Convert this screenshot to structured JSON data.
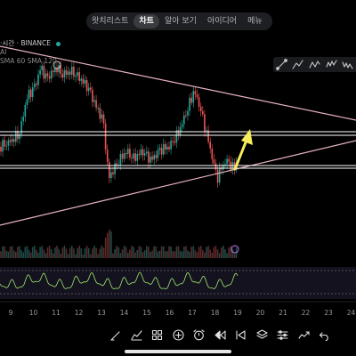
{
  "nav": {
    "tabs": [
      {
        "label": "왓치리스트",
        "active": false
      },
      {
        "label": "차트",
        "active": true
      },
      {
        "label": "알아 보기",
        "active": false
      },
      {
        "label": "아이디어",
        "active": false
      },
      {
        "label": "메뉴",
        "active": false
      }
    ]
  },
  "legend": {
    "symbol": "·시간 · BINANCE",
    "sub": "AI",
    "sma": "SMA 60 SMA 120"
  },
  "xaxis": {
    "labels": [
      "9",
      "10",
      "11",
      "12",
      "13",
      "14",
      "15",
      "16",
      "17",
      "18",
      "19",
      "20",
      "21",
      "22",
      "23",
      "24"
    ]
  },
  "drawing_tools": [
    "trend-line-icon",
    "path-icon",
    "pattern-icon",
    "wave-icon",
    "wave-alt-icon"
  ],
  "bottom_toolbar": [
    "pencil-icon",
    "indicators-icon",
    "grid-icon",
    "add-icon",
    "alarm-icon",
    "replay-icon",
    "skip-left-icon",
    "layers-icon",
    "settings-icon",
    "trend-icon",
    "undo-icon"
  ],
  "colors": {
    "up": "#26a69a",
    "down": "#ef5350",
    "trendline": "#e7b3bd",
    "hline": "#ffffff",
    "arrow": "#f7ec5a",
    "rsi": "#9fe870",
    "marker": "#c77dff"
  }
}
